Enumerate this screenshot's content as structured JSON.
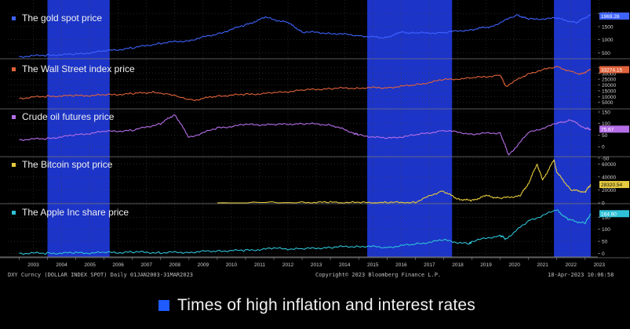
{
  "chart_data": {
    "type": "line",
    "x_ticks": [
      "2003",
      "2004",
      "2005",
      "2006",
      "2007",
      "2008",
      "2009",
      "2010",
      "2011",
      "2012",
      "2013",
      "2014",
      "2015",
      "2016",
      "2017",
      "2018",
      "2019",
      "2020",
      "2021",
      "2022",
      "2023"
    ],
    "highlight_periods": [
      {
        "start": 2004.0,
        "end": 2006.2
      },
      {
        "start": 2015.3,
        "end": 2018.3
      },
      {
        "start": 2021.9,
        "end": 2023.2
      }
    ],
    "highlight_color": "#1c34c8",
    "panels": [
      {
        "title": "The gold spot price",
        "color": "#3f63ff",
        "ylim": [
          300,
          2100
        ],
        "yticks": [
          "2000",
          "1500",
          "1000",
          "500"
        ],
        "ytick_values": [
          2000,
          1500,
          1000,
          500
        ],
        "last_value": "1969.28",
        "series": {
          "x": [
            2003,
            2004,
            2005,
            2006,
            2007,
            2008,
            2009,
            2010,
            2011,
            2011.7,
            2012.5,
            2013,
            2014,
            2015,
            2015.9,
            2016.5,
            2017,
            2018,
            2019,
            2019.7,
            2020.6,
            2021,
            2022,
            2022.7,
            2023.2
          ],
          "y": [
            350,
            410,
            440,
            560,
            680,
            870,
            970,
            1220,
            1560,
            1850,
            1650,
            1300,
            1250,
            1160,
            1060,
            1280,
            1250,
            1270,
            1390,
            1510,
            1950,
            1780,
            1820,
            1650,
            1969
          ]
        }
      },
      {
        "title": "The Wall Street index price",
        "color": "#e0623a",
        "ylim": [
          0,
          40000
        ],
        "yticks": [
          "35000",
          "30000",
          "25000",
          "20000",
          "15000",
          "10000",
          "5000"
        ],
        "ytick_values": [
          35000,
          30000,
          25000,
          20000,
          15000,
          10000,
          5000
        ],
        "last_value": "33274.15",
        "series": {
          "x": [
            2003,
            2004,
            2005,
            2006,
            2007,
            2007.8,
            2009.2,
            2010,
            2011,
            2012,
            2013,
            2014,
            2015,
            2016,
            2017,
            2018,
            2019,
            2020,
            2020.2,
            2021,
            2022,
            2022.8,
            2023.2
          ],
          "y": [
            8500,
            10300,
            10700,
            11200,
            12500,
            14000,
            7000,
            10500,
            11800,
            13000,
            15500,
            17000,
            17500,
            17700,
            20000,
            24500,
            26000,
            28500,
            19000,
            30000,
            36000,
            29000,
            33274
          ]
        }
      },
      {
        "title": "Crude oil futures price",
        "color": "#b56ee8",
        "ylim": [
          -40,
          160
        ],
        "yticks": [
          "150",
          "100",
          "50",
          "0",
          "-50"
        ],
        "ytick_values": [
          150,
          100,
          50,
          0,
          -50
        ],
        "last_value": "75.67",
        "series": {
          "x": [
            2003,
            2004,
            2005,
            2006,
            2007,
            2008,
            2008.5,
            2009,
            2010,
            2011,
            2012,
            2013,
            2014,
            2014.8,
            2015,
            2016,
            2017,
            2018,
            2019,
            2020,
            2020.3,
            2021,
            2022,
            2022.5,
            2023,
            2023.2
          ],
          "y": [
            30,
            35,
            50,
            65,
            70,
            100,
            140,
            40,
            80,
            95,
            95,
            100,
            95,
            60,
            50,
            35,
            50,
            70,
            55,
            60,
            -37,
            60,
            100,
            115,
            80,
            75.67
          ]
        }
      },
      {
        "title": "The Bitcoin spot price",
        "color": "#e6cb3f",
        "ylim": [
          0,
          70000
        ],
        "yticks": [
          "60000",
          "40000",
          "20000",
          "0"
        ],
        "ytick_values": [
          60000,
          40000,
          20000,
          0
        ],
        "last_value": "28320.54",
        "series": {
          "x": [
            2010,
            2013,
            2014,
            2015,
            2016,
            2017,
            2017.95,
            2018.5,
            2019,
            2019.5,
            2020,
            2020.7,
            2021,
            2021.3,
            2021.5,
            2021.9,
            2022,
            2022.5,
            2023,
            2023.2
          ],
          "y": [
            0,
            500,
            800,
            300,
            400,
            1000,
            19000,
            6000,
            3500,
            11000,
            7000,
            11000,
            30000,
            60000,
            35000,
            66000,
            47000,
            20000,
            17000,
            28320
          ]
        }
      },
      {
        "title": "The Apple Inc share price",
        "color": "#2fc2d6",
        "ylim": [
          -15,
          200
        ],
        "yticks": [
          "150",
          "100",
          "50",
          "0"
        ],
        "ytick_values": [
          150,
          100,
          50,
          0
        ],
        "last_value": "164.90",
        "series": {
          "x": [
            2003,
            2004,
            2005,
            2006,
            2007,
            2008,
            2009,
            2010,
            2011,
            2012,
            2013,
            2014,
            2015,
            2016,
            2017,
            2018,
            2018.9,
            2019,
            2020,
            2020.2,
            2021,
            2022,
            2022.4,
            2023,
            2023.2
          ],
          "y": [
            0.3,
            0.6,
            1.5,
            2.5,
            5,
            3,
            5,
            10,
            12,
            20,
            18,
            25,
            30,
            25,
            38,
            55,
            38,
            50,
            75,
            60,
            135,
            180,
            140,
            125,
            164.9
          ]
        }
      }
    ]
  },
  "footer": {
    "left": "DXY Curncy (DOLLAR INDEX SPOT) Daily 01JAN2003-31MAR2023",
    "center": "Copyright© 2023 Bloomberg Finance L.P.",
    "right": "18-Apr-2023 10:06:58"
  },
  "legend": {
    "label": "Times of high inflation and interest rates",
    "swatch_color": "#1f5bff"
  }
}
